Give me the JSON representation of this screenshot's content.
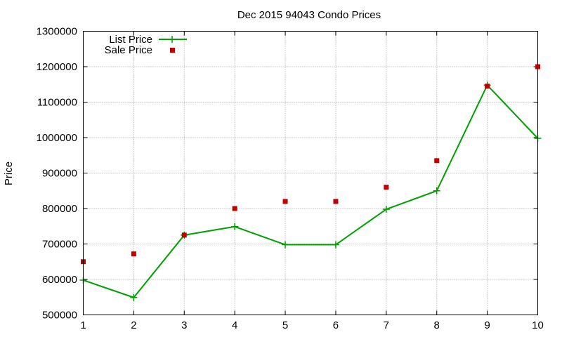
{
  "chart_data": {
    "type": "line",
    "title": "Dec 2015 94043 Condo Prices",
    "xlabel": "",
    "ylabel": "Price",
    "x": [
      1,
      2,
      3,
      4,
      5,
      6,
      7,
      8,
      9,
      10
    ],
    "xlim": [
      1,
      10
    ],
    "ylim": [
      500000,
      1300000
    ],
    "xticks": [
      "1",
      "2",
      "3",
      "4",
      "5",
      "6",
      "7",
      "8",
      "9",
      "10"
    ],
    "yticks": [
      "500000",
      "600000",
      "700000",
      "800000",
      "900000",
      "1000000",
      "1100000",
      "1200000",
      "1300000"
    ],
    "grid": true,
    "legend_position": "top-left",
    "series": [
      {
        "name": "List Price",
        "style": "line-with-plus-markers",
        "color": "#00a000",
        "values": [
          598000,
          549000,
          725000,
          749000,
          698000,
          698000,
          798000,
          850000,
          1148000,
          998000
        ]
      },
      {
        "name": "Sale Price",
        "style": "square-markers",
        "color": "#c00000",
        "values": [
          650000,
          672000,
          725000,
          800000,
          820000,
          820000,
          860000,
          935000,
          1145000,
          1200000
        ]
      }
    ]
  }
}
